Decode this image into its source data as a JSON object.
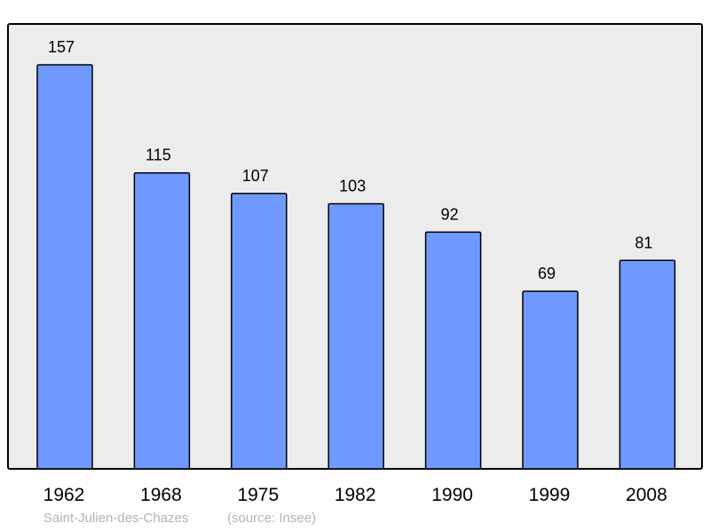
{
  "chart_data": {
    "type": "bar",
    "categories": [
      "1962",
      "1968",
      "1975",
      "1982",
      "1990",
      "1999",
      "2008"
    ],
    "values": [
      157,
      115,
      107,
      103,
      92,
      69,
      81
    ],
    "ylim": [
      0,
      157
    ],
    "grid": false,
    "data_labels": true
  },
  "footer": {
    "place": "Saint-Julien-des-Chazes",
    "source": "(source: Insee)"
  },
  "colors": {
    "bar": "#7099ff",
    "plot_background": "#ececec",
    "border": "#000000"
  }
}
